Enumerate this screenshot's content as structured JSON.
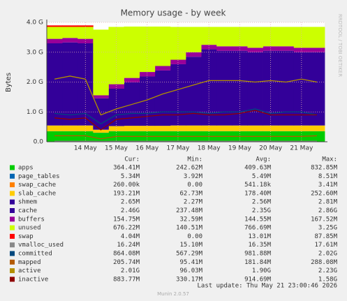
{
  "chart_data": {
    "type": "stacked-area",
    "title": "Memory usage - by week",
    "ylabel": "Bytes",
    "side_text": "RRDTOOL / TOBI OETIKER",
    "categories": [
      null,
      null,
      "14 May",
      null,
      "15 May",
      null,
      "16 May",
      null,
      "17 May",
      null,
      "18 May",
      null,
      "19 May",
      null,
      "20 May",
      null,
      "21 May",
      null
    ],
    "ylim": [
      0,
      4
    ],
    "yticks": [
      {
        "value": 0,
        "label": "0.0"
      },
      {
        "value": 1,
        "label": "1.0 G"
      },
      {
        "value": 2,
        "label": "2.0 G"
      },
      {
        "value": 3,
        "label": "3.0 G"
      },
      {
        "value": 4,
        "label": "4.0 G"
      }
    ],
    "grid": true,
    "series": [
      {
        "name": "apps",
        "color": "#00cc00",
        "stack": true,
        "values": [
          0.35,
          0.35,
          0.35,
          0.3,
          0.35,
          0.35,
          0.35,
          0.35,
          0.35,
          0.35,
          0.35,
          0.35,
          0.35,
          0.35,
          0.35,
          0.35,
          0.35,
          0.35
        ]
      },
      {
        "name": "page_tables",
        "color": "#0066b3",
        "stack": true,
        "values": [
          0.005,
          0.005,
          0.005,
          0.004,
          0.005,
          0.005,
          0.005,
          0.005,
          0.005,
          0.005,
          0.005,
          0.005,
          0.005,
          0.005,
          0.005,
          0.005,
          0.005,
          0.005
        ]
      },
      {
        "name": "swap_cache",
        "color": "#ff8000",
        "stack": true,
        "values": [
          0,
          0,
          0,
          0,
          0,
          0,
          0,
          0,
          0,
          0,
          0,
          0,
          0,
          0,
          0,
          0,
          0,
          0
        ]
      },
      {
        "name": "slab_cache",
        "color": "#ffcc00",
        "stack": true,
        "values": [
          0.19,
          0.19,
          0.19,
          0.1,
          0.17,
          0.18,
          0.18,
          0.18,
          0.19,
          0.19,
          0.19,
          0.19,
          0.19,
          0.19,
          0.19,
          0.19,
          0.19,
          0.19
        ]
      },
      {
        "name": "shmem",
        "color": "#330099",
        "stack": true,
        "values": [
          0.003,
          0.003,
          0.003,
          0.002,
          0.003,
          0.003,
          0.003,
          0.003,
          0.003,
          0.003,
          0.003,
          0.003,
          0.003,
          0.003,
          0.003,
          0.003,
          0.003,
          0.003
        ]
      },
      {
        "name": "cache",
        "color": "#330099",
        "stack": true,
        "values": [
          2.75,
          2.78,
          2.75,
          1.05,
          1.25,
          1.45,
          1.65,
          1.85,
          2.05,
          2.3,
          2.55,
          2.5,
          2.5,
          2.45,
          2.5,
          2.5,
          2.45,
          2.45
        ]
      },
      {
        "name": "buffers",
        "color": "#990099",
        "stack": true,
        "values": [
          0.15,
          0.15,
          0.15,
          0.1,
          0.15,
          0.15,
          0.15,
          0.15,
          0.15,
          0.15,
          0.15,
          0.15,
          0.15,
          0.15,
          0.15,
          0.15,
          0.15,
          0.15
        ]
      },
      {
        "name": "unused",
        "color": "#ccff00",
        "stack": true,
        "values": [
          0.4,
          0.37,
          0.4,
          2.2,
          1.92,
          1.72,
          1.52,
          1.32,
          1.1,
          0.85,
          0.6,
          0.65,
          0.65,
          0.7,
          0.65,
          0.65,
          0.7,
          0.7
        ]
      },
      {
        "name": "swap",
        "color": "#ff0000",
        "stack": true,
        "values": [
          0.05,
          0.05,
          0.05,
          0,
          0,
          0,
          0,
          0,
          0,
          0,
          0,
          0,
          0,
          0,
          0,
          0,
          0,
          0
        ]
      },
      {
        "name": "vmalloc_used",
        "color": "#888888",
        "stack": false,
        "values": [
          0.016,
          0.016,
          0.016,
          0.015,
          0.016,
          0.016,
          0.016,
          0.016,
          0.016,
          0.016,
          0.016,
          0.016,
          0.016,
          0.016,
          0.016,
          0.016,
          0.016,
          0.016
        ]
      },
      {
        "name": "committed",
        "color": "#00487d",
        "stack": false,
        "values": [
          0.95,
          0.9,
          0.95,
          0.6,
          0.9,
          0.95,
          0.95,
          1.0,
          1.0,
          1.0,
          0.95,
          1.0,
          1.0,
          1.1,
          0.95,
          1.0,
          1.0,
          0.9
        ]
      },
      {
        "name": "mapped",
        "color": "#b35a00",
        "stack": false,
        "values": [
          0.2,
          0.2,
          0.2,
          0.1,
          0.18,
          0.18,
          0.18,
          0.18,
          0.18,
          0.18,
          0.18,
          0.18,
          0.18,
          0.18,
          0.18,
          0.18,
          0.18,
          0.2
        ]
      },
      {
        "name": "active",
        "color": "#b38f00",
        "stack": false,
        "values": [
          2.1,
          2.2,
          2.1,
          0.9,
          1.1,
          1.25,
          1.4,
          1.6,
          1.75,
          1.9,
          2.05,
          2.05,
          2.05,
          2.0,
          2.05,
          2.0,
          2.1,
          2.0
        ]
      },
      {
        "name": "inactive",
        "color": "#8f0000",
        "stack": false,
        "values": [
          0.8,
          0.75,
          0.8,
          0.4,
          0.75,
          0.8,
          0.85,
          0.9,
          0.9,
          0.95,
          0.9,
          0.9,
          0.95,
          1.05,
          0.9,
          0.9,
          0.9,
          0.9
        ]
      }
    ],
    "summary": {
      "columns": [
        "Cur:",
        "Min:",
        "Avg:",
        "Max:"
      ],
      "rows": [
        [
          "364.41M",
          "242.62M",
          "409.63M",
          "832.85M"
        ],
        [
          "5.34M",
          "3.92M",
          "5.49M",
          "8.51M"
        ],
        [
          "260.00k",
          "0.00",
          "541.18k",
          "3.41M"
        ],
        [
          "193.21M",
          "62.73M",
          "178.40M",
          "252.60M"
        ],
        [
          "2.65M",
          "2.27M",
          "2.56M",
          "2.81M"
        ],
        [
          "2.46G",
          "237.48M",
          "2.35G",
          "2.86G"
        ],
        [
          "154.75M",
          "32.59M",
          "144.55M",
          "167.52M"
        ],
        [
          "676.22M",
          "140.51M",
          "766.69M",
          "3.25G"
        ],
        [
          "4.04M",
          "0.00",
          "13.01M",
          "87.85M"
        ],
        [
          "16.24M",
          "15.10M",
          "16.35M",
          "17.61M"
        ],
        [
          "864.08M",
          "567.29M",
          "981.88M",
          "2.02G"
        ],
        [
          "205.74M",
          "95.41M",
          "181.84M",
          "288.08M"
        ],
        [
          "2.01G",
          "96.03M",
          "1.90G",
          "2.23G"
        ],
        [
          "883.77M",
          "330.17M",
          "914.69M",
          "1.58G"
        ]
      ]
    },
    "last_update": "Last update: Thu May 21 23:00:46 2026",
    "footer": "Munin 2.0.57"
  }
}
